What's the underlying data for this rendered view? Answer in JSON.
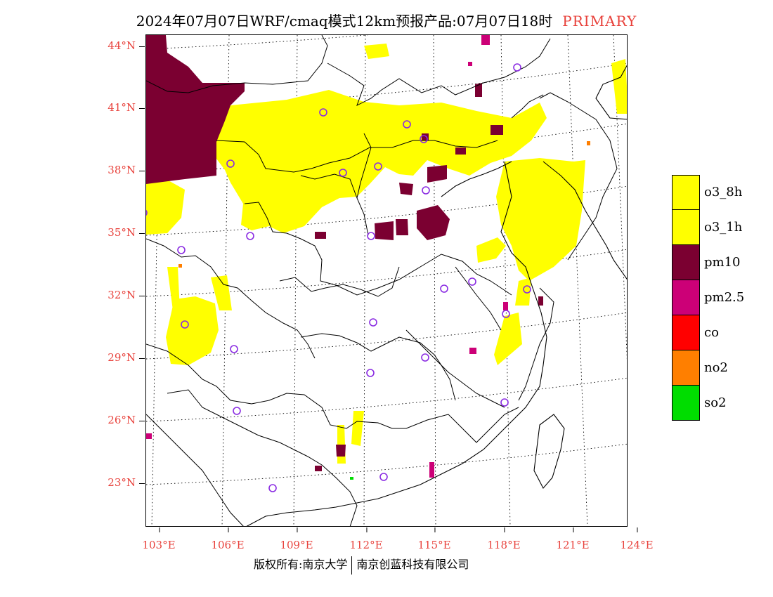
{
  "title": {
    "text": "2024年07月07日WRF/cmaq模式12km预报产品:07月07日18时",
    "tag": "PRIMARY",
    "tag_color": "#e8413b"
  },
  "map": {
    "lat_labels": [
      "44°N",
      "41°N",
      "38°N",
      "35°N",
      "32°N",
      "29°N",
      "26°N",
      "23°N"
    ],
    "lon_labels": [
      "103°E",
      "106°E",
      "109°E",
      "112°E",
      "115°E",
      "118°E",
      "121°E",
      "124°E"
    ],
    "label_color": "#e8413b",
    "station_marker_color": "#8a2be2"
  },
  "legend": {
    "items": [
      {
        "label": "o3_8h",
        "color": "#ffff00"
      },
      {
        "label": "o3_1h",
        "color": "#ffff00"
      },
      {
        "label": "pm10",
        "color": "#7b0031"
      },
      {
        "label": "pm2.5",
        "color": "#cc0077"
      },
      {
        "label": "co",
        "color": "#ff0000"
      },
      {
        "label": "no2",
        "color": "#ff7f00"
      },
      {
        "label": "so2",
        "color": "#00dd00"
      }
    ]
  },
  "footer": {
    "left": "版权所有:南京大学",
    "right": "南京创蓝科技有限公司"
  }
}
